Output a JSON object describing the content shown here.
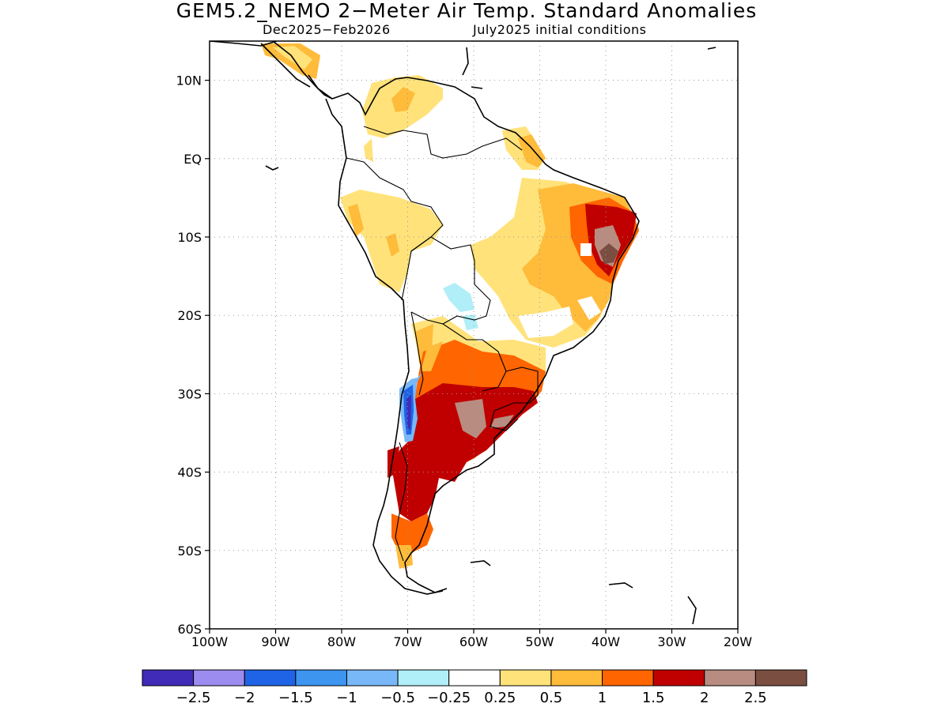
{
  "title": "GEM5.2_NEMO 2−Meter Air Temp. Standard Anomalies",
  "subtitle_left": "Dec2025−Feb2026",
  "subtitle_right": "July2025 initial conditions",
  "map": {
    "lon_range": [
      -100,
      -20
    ],
    "lat_range": [
      -60,
      15
    ],
    "gridlines": "dotted",
    "lat_ticks": [
      {
        "value": 10,
        "label": "10N"
      },
      {
        "value": 0,
        "label": "EQ"
      },
      {
        "value": -10,
        "label": "10S"
      },
      {
        "value": -20,
        "label": "20S"
      },
      {
        "value": -30,
        "label": "30S"
      },
      {
        "value": -40,
        "label": "40S"
      },
      {
        "value": -50,
        "label": "50S"
      },
      {
        "value": -60,
        "label": "60S"
      }
    ],
    "lon_ticks": [
      {
        "value": -100,
        "label": "100W"
      },
      {
        "value": -90,
        "label": "90W"
      },
      {
        "value": -80,
        "label": "80W"
      },
      {
        "value": -70,
        "label": "70W"
      },
      {
        "value": -60,
        "label": "60W"
      },
      {
        "value": -50,
        "label": "50W"
      },
      {
        "value": -40,
        "label": "40W"
      },
      {
        "value": -30,
        "label": "30W"
      },
      {
        "value": -20,
        "label": "20W"
      }
    ]
  },
  "colorbar": {
    "colors": [
      "#3f2bb8",
      "#9d8cf0",
      "#1f64e6",
      "#3d95f0",
      "#78b8f8",
      "#b0eef8",
      "#ffffff",
      "#ffe27a",
      "#ffbb3a",
      "#ff6500",
      "#c00000",
      "#b88c80",
      "#7a4e40"
    ],
    "labels": [
      "−2.5",
      "−2",
      "−1.5",
      "−1",
      "−0.5",
      "−0.25",
      "0.25",
      "0.5",
      "1",
      "1.5",
      "2",
      "2.5"
    ]
  }
}
